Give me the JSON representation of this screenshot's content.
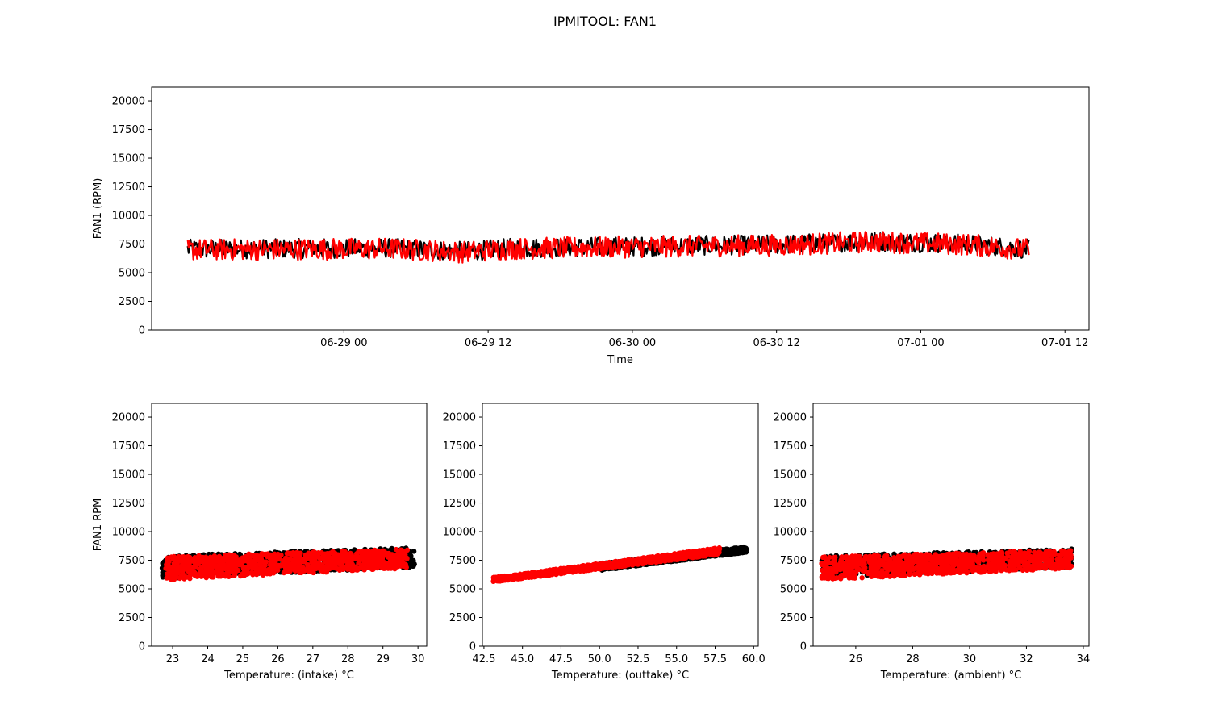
{
  "figure": {
    "suptitle": "IPMITOOL: FAN1"
  },
  "colors": {
    "background": "#ffffff",
    "black_series": "#000000",
    "red_series": "#ff0000",
    "axes": "#000000"
  },
  "chart_data": [
    {
      "id": "timeseries",
      "type": "line",
      "xlabel": "Time",
      "ylabel": "FAN1 (RPM)",
      "x_scale": "time",
      "xlim": [
        "2019-06-28 08:00",
        "2019-07-01 14:00"
      ],
      "ylim": [
        0,
        21200
      ],
      "xtick_labels": [
        "06-29 00",
        "06-29 12",
        "06-30 00",
        "06-30 12",
        "07-01 00",
        "07-01 12"
      ],
      "xtick_values": [
        "2019-06-29 00:00",
        "2019-06-29 12:00",
        "2019-06-30 00:00",
        "2019-06-30 12:00",
        "2019-07-01 00:00",
        "2019-07-01 12:00"
      ],
      "yticks": [
        0,
        2500,
        5000,
        7500,
        10000,
        12500,
        15000,
        17500,
        20000
      ],
      "grid": false,
      "series": [
        {
          "color": "#000000",
          "trend": [
            [
              "2019-06-28 11:00",
              7050
            ],
            [
              "2019-06-29 04:00",
              7150
            ],
            [
              "2019-06-29 10:00",
              6850
            ],
            [
              "2019-06-29 14:00",
              7150
            ],
            [
              "2019-06-30 00:00",
              7300
            ],
            [
              "2019-06-30 12:00",
              7450
            ],
            [
              "2019-06-30 20:00",
              7750
            ],
            [
              "2019-07-01 04:00",
              7500
            ],
            [
              "2019-07-01 09:00",
              7050
            ]
          ],
          "band_halfwidth": 850
        },
        {
          "color": "#ff0000",
          "trend": [
            [
              "2019-06-28 11:00",
              7000
            ],
            [
              "2019-06-29 04:00",
              7100
            ],
            [
              "2019-06-29 10:00",
              6800
            ],
            [
              "2019-06-29 14:00",
              7100
            ],
            [
              "2019-06-30 00:00",
              7250
            ],
            [
              "2019-06-30 12:00",
              7400
            ],
            [
              "2019-06-30 20:00",
              7700
            ],
            [
              "2019-07-01 04:00",
              7450
            ],
            [
              "2019-07-01 09:00",
              7000
            ]
          ],
          "band_halfwidth": 950
        }
      ]
    },
    {
      "id": "intake",
      "type": "scatter",
      "xlabel": "Temperature: (intake) °C",
      "ylabel": "FAN1 RPM",
      "xlim": [
        22.4,
        30.25
      ],
      "ylim": [
        0,
        21200
      ],
      "xticks": [
        23,
        24,
        25,
        26,
        27,
        28,
        29,
        30
      ],
      "yticks": [
        0,
        2500,
        5000,
        7500,
        10000,
        12500,
        15000,
        17500,
        20000
      ],
      "grid": false,
      "series": [
        {
          "color": "#000000",
          "x_range": [
            22.7,
            29.9
          ],
          "y_start": [
            5900,
            7900
          ],
          "y_end": [
            6900,
            8600
          ]
        },
        {
          "color": "#ff0000",
          "x_range": [
            22.8,
            29.7
          ],
          "y_start": [
            5800,
            7800
          ],
          "y_end": [
            6800,
            8500
          ]
        }
      ]
    },
    {
      "id": "outtake",
      "type": "scatter",
      "xlabel": "Temperature: (outtake) °C",
      "ylabel": "",
      "xlim": [
        42.4,
        60.3
      ],
      "ylim": [
        0,
        21200
      ],
      "xticks": [
        42.5,
        45.0,
        47.5,
        50.0,
        52.5,
        55.0,
        57.5,
        60.0
      ],
      "xtick_labels": [
        "42.5",
        "45.0",
        "47.5",
        "50.0",
        "52.5",
        "55.0",
        "57.5",
        "60.0"
      ],
      "yticks": [
        0,
        2500,
        5000,
        7500,
        10000,
        12500,
        15000,
        17500,
        20000
      ],
      "grid": false,
      "series": [
        {
          "color": "#000000",
          "x_range": [
            50.0,
            59.6
          ],
          "y_start": [
            6600,
            7200
          ],
          "y_end": [
            8200,
            8700
          ]
        },
        {
          "color": "#ff0000",
          "x_range": [
            43.1,
            57.8
          ],
          "y_start": [
            5600,
            6000
          ],
          "y_end": [
            8000,
            8600
          ]
        }
      ]
    },
    {
      "id": "ambient",
      "type": "scatter",
      "xlabel": "Temperature: (ambient) °C",
      "ylabel": "",
      "xlim": [
        24.5,
        34.2
      ],
      "ylim": [
        0,
        21200
      ],
      "xticks": [
        26,
        28,
        30,
        32,
        34
      ],
      "yticks": [
        0,
        2500,
        5000,
        7500,
        10000,
        12500,
        15000,
        17500,
        20000
      ],
      "grid": false,
      "series": [
        {
          "color": "#000000",
          "x_range": [
            24.8,
            33.6
          ],
          "y_start": [
            6000,
            7900
          ],
          "y_end": [
            6900,
            8500
          ]
        },
        {
          "color": "#ff0000",
          "x_range": [
            24.8,
            33.6
          ],
          "y_start": [
            5800,
            7800
          ],
          "y_end": [
            6800,
            8400
          ]
        }
      ]
    }
  ]
}
